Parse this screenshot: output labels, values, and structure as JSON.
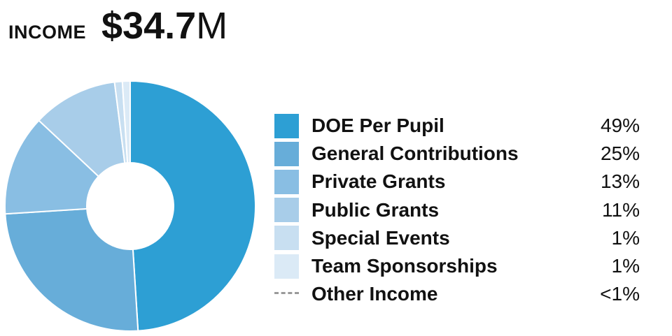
{
  "header": {
    "label": "INCOME",
    "value_number": "$34.7",
    "value_unit": "M"
  },
  "chart_data": {
    "type": "pie",
    "title": "",
    "slices": [
      {
        "name": "DOE Per Pupil",
        "value": 49,
        "display": "49%",
        "color": "#2d9fd4"
      },
      {
        "name": "General Contributions",
        "value": 25,
        "display": "25%",
        "color": "#67add9"
      },
      {
        "name": "Private Grants",
        "value": 13,
        "display": "13%",
        "color": "#89bee3"
      },
      {
        "name": "Public Grants",
        "value": 11,
        "display": "11%",
        "color": "#a8cde9"
      },
      {
        "name": "Special Events",
        "value": 1,
        "display": "1%",
        "color": "#c8dff1"
      },
      {
        "name": "Team Sponsorships",
        "value": 1,
        "display": "1%",
        "color": "#dbeaf6"
      }
    ],
    "other": {
      "name": "Other Income",
      "display": "<1%"
    },
    "legend_position": "right"
  }
}
